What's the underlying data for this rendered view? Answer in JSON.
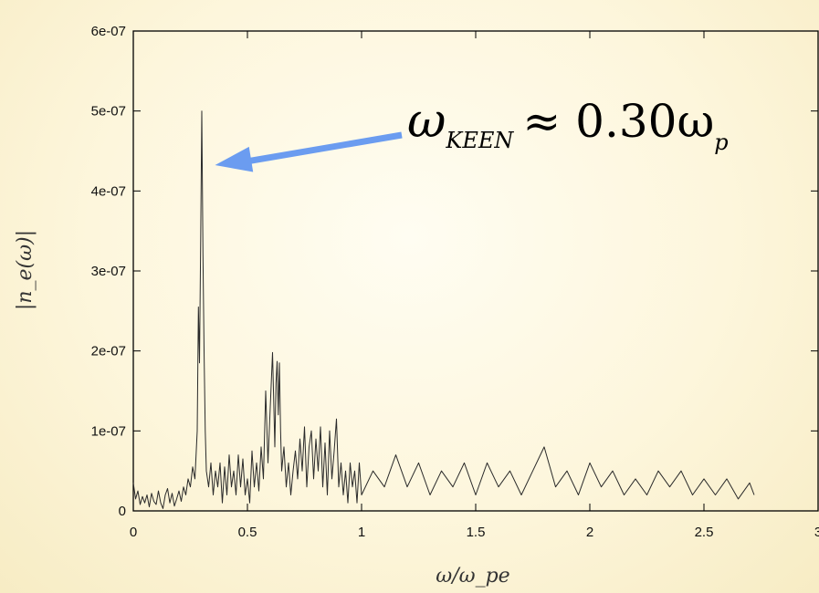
{
  "chart_data": {
    "type": "line",
    "title": "",
    "xlabel": "ω/ω_pe",
    "ylabel": "|n_e(ω)|",
    "xlim": [
      0,
      3
    ],
    "ylim": [
      0,
      6e-07
    ],
    "x_ticks": [
      {
        "value": 0,
        "label": "0"
      },
      {
        "value": 0.5,
        "label": "0.5"
      },
      {
        "value": 1,
        "label": "1"
      },
      {
        "value": 1.5,
        "label": "1.5"
      },
      {
        "value": 2,
        "label": "2"
      },
      {
        "value": 2.5,
        "label": "2.5"
      },
      {
        "value": 3,
        "label": "3"
      }
    ],
    "y_ticks": [
      {
        "value": 0,
        "label": "0"
      },
      {
        "value": 1e-07,
        "label": "1e-07"
      },
      {
        "value": 2e-07,
        "label": "2e-07"
      },
      {
        "value": 3e-07,
        "label": "3e-07"
      },
      {
        "value": 4e-07,
        "label": "4e-07"
      },
      {
        "value": 5e-07,
        "label": "5e-07"
      },
      {
        "value": 6e-07,
        "label": "6e-07"
      }
    ],
    "grid": false,
    "legend": "none",
    "line_color": "#2a2a2a",
    "series": [
      {
        "x": [
          0,
          0.01,
          0.02,
          0.03,
          0.04,
          0.05,
          0.06,
          0.07,
          0.08,
          0.09,
          0.1,
          0.11,
          0.12,
          0.13,
          0.14,
          0.15,
          0.16,
          0.17,
          0.18,
          0.19,
          0.2,
          0.21,
          0.22,
          0.23,
          0.24,
          0.25,
          0.26,
          0.27,
          0.28,
          0.285,
          0.29,
          0.295,
          0.3,
          0.305,
          0.31,
          0.315,
          0.32,
          0.33,
          0.34,
          0.35,
          0.36,
          0.37,
          0.38,
          0.39,
          0.4,
          0.41,
          0.42,
          0.43,
          0.44,
          0.45,
          0.46,
          0.47,
          0.48,
          0.49,
          0.5,
          0.51,
          0.52,
          0.53,
          0.54,
          0.55,
          0.56,
          0.57,
          0.58,
          0.59,
          0.6,
          0.61,
          0.62,
          0.625,
          0.63,
          0.635,
          0.64,
          0.645,
          0.65,
          0.66,
          0.67,
          0.68,
          0.69,
          0.7,
          0.71,
          0.72,
          0.73,
          0.74,
          0.75,
          0.76,
          0.77,
          0.78,
          0.79,
          0.8,
          0.81,
          0.82,
          0.83,
          0.84,
          0.85,
          0.86,
          0.87,
          0.88,
          0.89,
          0.9,
          0.91,
          0.92,
          0.93,
          0.94,
          0.95,
          0.96,
          0.97,
          0.98,
          0.99,
          1.0,
          1.05,
          1.1,
          1.15,
          1.2,
          1.25,
          1.3,
          1.35,
          1.4,
          1.45,
          1.5,
          1.55,
          1.6,
          1.65,
          1.7,
          1.75,
          1.8,
          1.85,
          1.9,
          1.95,
          2.0,
          2.05,
          2.1,
          2.15,
          2.2,
          2.25,
          2.3,
          2.35,
          2.4,
          2.45,
          2.5,
          2.55,
          2.6,
          2.65,
          2.7,
          2.72
        ],
        "y": [
          3.5e-08,
          1.5e-08,
          2.5e-08,
          8e-09,
          1.8e-08,
          1e-08,
          2e-08,
          5e-09,
          2.2e-08,
          1.2e-08,
          8e-09,
          2.5e-08,
          1e-08,
          3e-09,
          2e-08,
          2.8e-08,
          1e-08,
          2.2e-08,
          6e-09,
          1.5e-08,
          2.5e-08,
          1.2e-08,
          3e-08,
          2e-08,
          4e-08,
          3e-08,
          5.5e-08,
          4e-08,
          1e-07,
          2.55e-07,
          1.85e-07,
          3.4e-07,
          5e-07,
          3.2e-07,
          2e-07,
          1e-07,
          5e-08,
          3e-08,
          6e-08,
          2e-08,
          5e-08,
          3e-08,
          6e-08,
          1e-08,
          5.5e-08,
          2e-08,
          7e-08,
          3e-08,
          5e-08,
          2e-08,
          7e-08,
          3e-08,
          6.5e-08,
          2e-08,
          4e-08,
          1e-08,
          7.5e-08,
          3e-08,
          6e-08,
          2.5e-08,
          8e-08,
          4e-08,
          1.5e-07,
          6e-08,
          1.3e-07,
          1.98e-07,
          8e-08,
          1.6e-07,
          1.87e-07,
          1.2e-07,
          1.85e-07,
          1e-07,
          5e-08,
          8e-08,
          3e-08,
          6e-08,
          2e-08,
          5e-08,
          7.5e-08,
          4e-08,
          9e-08,
          5e-08,
          1.05e-07,
          3e-08,
          8e-08,
          1e-07,
          4e-08,
          9e-08,
          5e-08,
          1.05e-07,
          3e-08,
          8.5e-08,
          2e-08,
          1e-07,
          4e-08,
          7.5e-08,
          1.15e-07,
          3e-08,
          6e-08,
          2e-08,
          5e-08,
          1e-08,
          6e-08,
          3e-08,
          5e-08,
          1e-08,
          6e-08,
          2e-08,
          5e-08,
          3e-08,
          7e-08,
          3e-08,
          6e-08,
          2e-08,
          5e-08,
          3e-08,
          6e-08,
          2e-08,
          6e-08,
          3e-08,
          5e-08,
          2e-08,
          5e-08,
          8e-08,
          3e-08,
          5e-08,
          2e-08,
          6e-08,
          3e-08,
          5e-08,
          2e-08,
          4e-08,
          2e-08,
          5e-08,
          3e-08,
          5e-08,
          2e-08,
          4e-08,
          2e-08,
          4e-08,
          1.5e-08,
          3.5e-08,
          2e-08
        ]
      }
    ],
    "annotation": {
      "text_main": "ω",
      "text_sub": "KEEN",
      "text_rel": "≈ 0.30ω",
      "text_sub2": "p",
      "arrow_x": 0.31,
      "arrow_y": 4.3e-07,
      "arrow_color": "#6b9cf0"
    }
  }
}
